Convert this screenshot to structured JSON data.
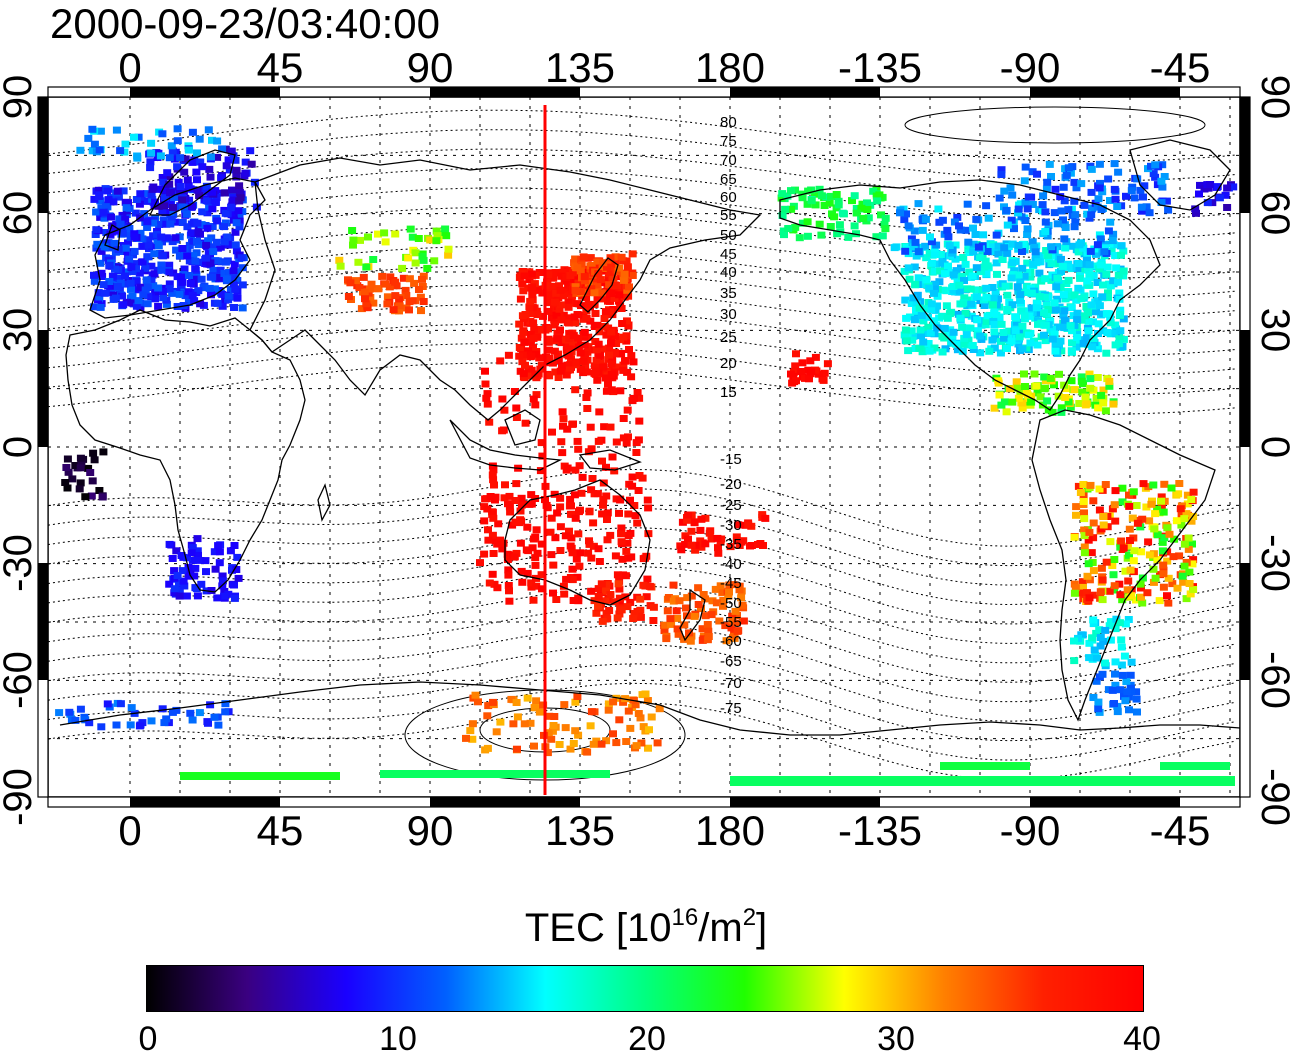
{
  "title": "2000-09-23/03:40:00",
  "map": {
    "top_lon_labels": [
      "0",
      "45",
      "90",
      "135",
      "180",
      "-135",
      "-90",
      "-45"
    ],
    "bottom_lon_labels": [
      "0",
      "45",
      "90",
      "135",
      "180",
      "-135",
      "-90",
      "-45"
    ],
    "lat_labels": [
      "90",
      "60",
      "30",
      "0",
      "-30",
      "-60",
      "-90"
    ],
    "contour_labels_north": [
      "80",
      "75",
      "70",
      "65",
      "60",
      "55",
      "50",
      "45",
      "40",
      "35",
      "30",
      "25",
      "20",
      "15"
    ],
    "contour_labels_south": [
      "-15",
      "-20",
      "-25",
      "-30",
      "-35",
      "-40",
      "-45",
      "-50",
      "-55",
      "-60",
      "-65",
      "-70",
      "-75"
    ],
    "line_color": "#ff0000"
  },
  "colorbar": {
    "title_prefix": "TEC  [10",
    "title_exp1": "16",
    "title_mid": "/m",
    "title_exp2": "2",
    "title_suffix": "]",
    "tick_labels": [
      "0",
      "10",
      "20",
      "30",
      "40"
    ],
    "colors": [
      "#000000",
      "#3a0080",
      "#1a00ff",
      "#0060ff",
      "#00ffff",
      "#00ff80",
      "#20ff00",
      "#ffff00",
      "#ff8000",
      "#ff2000",
      "#ff0000"
    ]
  }
}
